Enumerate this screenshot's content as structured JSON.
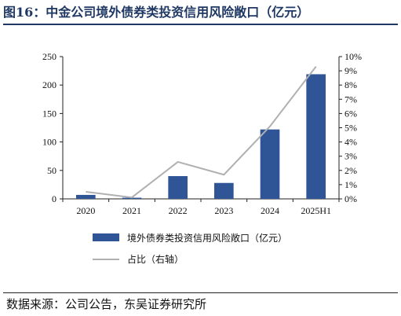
{
  "figure": {
    "title": "图16：中金公司境外债券类投资信用风险敞口（亿元）",
    "source": "数据来源：公司公告，东吴证券研究所"
  },
  "chart_data": {
    "type": "bar+line",
    "categories": [
      "2020",
      "2021",
      "2022",
      "2023",
      "2024",
      "2025H1"
    ],
    "series": [
      {
        "name": "境外债券类投资信用风险敞口（亿元）",
        "type": "bar",
        "axis": "left",
        "color": "#2f5597",
        "values": [
          7,
          2,
          40,
          28,
          122,
          219
        ]
      },
      {
        "name": "占比（右轴）",
        "type": "line",
        "axis": "right",
        "color": "#b0b0b0",
        "values": [
          0.5,
          0.1,
          2.6,
          1.7,
          5.1,
          9.3
        ]
      }
    ],
    "left_axis": {
      "ylim": [
        0,
        250
      ],
      "ticks": [
        0,
        50,
        100,
        150,
        200,
        250
      ]
    },
    "right_axis": {
      "ylim": [
        0,
        10
      ],
      "ticks": [
        0,
        1,
        2,
        3,
        4,
        5,
        6,
        7,
        8,
        9,
        10
      ],
      "tick_labels": [
        "0%",
        "1%",
        "2%",
        "3%",
        "4%",
        "5%",
        "6%",
        "7%",
        "8%",
        "9%",
        "10%"
      ]
    },
    "grid": false,
    "legend": "bottom"
  }
}
